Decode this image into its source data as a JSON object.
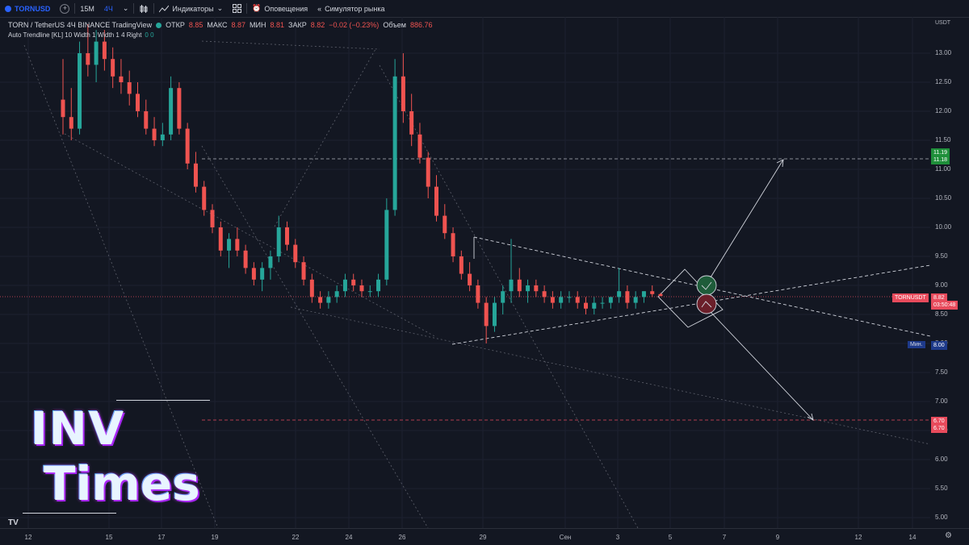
{
  "toolbar": {
    "symbol": "TORNUSD",
    "timeframe_15m": "15М",
    "timeframe_4h": "4Ч",
    "indicators": "Индикаторы",
    "alerts": "Оповещения",
    "replay": "Симулятор рынка"
  },
  "legend": {
    "title": "TORN / TetherUS  4Ч  BINANCE  TradingView",
    "open_label": "ОТКР",
    "open": "8.85",
    "high_label": "МАКС",
    "high": "8.87",
    "low_label": "МИН",
    "low": "8.81",
    "close_label": "ЗАКР",
    "close": "8.82",
    "change": "−0.02 (−0.23%)",
    "volume_label": "Объем",
    "volume": "886.76",
    "indicator": "Auto Trendline [KL]  10  Width 1  Width 1  4  Right",
    "indicator_vals": "0  0"
  },
  "price_axis": {
    "currency": "USDT",
    "ticks": [
      "13.00",
      "12.50",
      "12.00",
      "11.50",
      "11.00",
      "10.50",
      "10.00",
      "9.50",
      "9.00",
      "8.50",
      "8.00",
      "7.50",
      "7.00",
      "6.50",
      "6.00",
      "5.50",
      "5.00"
    ]
  },
  "price_tags": {
    "target_up_1": "11.19",
    "target_up_2": "11.18",
    "current_name": "TORNUSDT",
    "current_price": "8.82",
    "countdown": "03:50:48",
    "min_label": "Мин.",
    "min_price": "8.00",
    "target_down_1": "6.70",
    "target_down_2": "6.70"
  },
  "time_axis": {
    "ticks": [
      "12",
      "15",
      "17",
      "19",
      "22",
      "24",
      "26",
      "29",
      "Сен",
      "3",
      "5",
      "7",
      "9",
      "12",
      "14"
    ]
  },
  "watermark": {
    "line1": "INV",
    "line2": "Times"
  },
  "colors": {
    "background": "#131722",
    "bull": "#26a69a",
    "bear": "#ef5350",
    "accent": "#2962ff"
  },
  "chart_data": {
    "type": "candlestick",
    "symbol": "TORN / TetherUS",
    "exchange": "BINANCE",
    "interval": "4Ч",
    "ylim": [
      4.9,
      13.6
    ],
    "last_price": 8.82,
    "resistance_target": 11.18,
    "support_target": 6.7,
    "period_low": 8.0,
    "candles": [
      [
        12.2,
        12.9,
        11.6,
        11.9
      ],
      [
        11.9,
        12.4,
        11.5,
        11.7
      ],
      [
        11.7,
        13.2,
        11.6,
        13.0
      ],
      [
        13.0,
        13.5,
        12.6,
        12.8
      ],
      [
        12.8,
        13.4,
        12.5,
        13.2
      ],
      [
        13.2,
        13.4,
        12.7,
        12.9
      ],
      [
        12.9,
        13.1,
        12.4,
        12.6
      ],
      [
        12.6,
        12.9,
        12.3,
        12.5
      ],
      [
        12.5,
        12.7,
        12.1,
        12.3
      ],
      [
        12.3,
        12.5,
        11.9,
        12.0
      ],
      [
        12.0,
        12.2,
        11.6,
        11.7
      ],
      [
        11.7,
        11.9,
        11.4,
        11.5
      ],
      [
        11.5,
        11.8,
        11.4,
        11.6
      ],
      [
        11.6,
        12.6,
        11.5,
        12.4
      ],
      [
        12.4,
        12.5,
        11.6,
        11.7
      ],
      [
        11.7,
        11.8,
        11.0,
        11.1
      ],
      [
        11.1,
        11.3,
        10.6,
        10.7
      ],
      [
        10.7,
        10.8,
        10.2,
        10.3
      ],
      [
        10.3,
        10.4,
        9.9,
        10.0
      ],
      [
        10.0,
        10.1,
        9.5,
        9.6
      ],
      [
        9.6,
        9.9,
        9.3,
        9.8
      ],
      [
        9.8,
        10.0,
        9.5,
        9.6
      ],
      [
        9.6,
        9.7,
        9.2,
        9.3
      ],
      [
        9.3,
        9.4,
        9.0,
        9.1
      ],
      [
        9.1,
        9.4,
        8.9,
        9.3
      ],
      [
        9.3,
        9.6,
        9.1,
        9.5
      ],
      [
        9.5,
        10.2,
        9.4,
        10.0
      ],
      [
        10.0,
        10.1,
        9.6,
        9.7
      ],
      [
        9.7,
        9.8,
        9.3,
        9.4
      ],
      [
        9.4,
        9.5,
        9.0,
        9.1
      ],
      [
        9.1,
        9.2,
        8.7,
        8.8
      ],
      [
        8.8,
        8.9,
        8.6,
        8.7
      ],
      [
        8.7,
        8.9,
        8.6,
        8.8
      ],
      [
        8.8,
        9.0,
        8.7,
        8.9
      ],
      [
        8.9,
        9.2,
        8.8,
        9.1
      ],
      [
        9.1,
        9.2,
        8.9,
        9.0
      ],
      [
        9.0,
        9.1,
        8.8,
        8.9
      ],
      [
        8.9,
        9.0,
        8.8,
        8.9
      ],
      [
        8.9,
        9.2,
        8.8,
        9.1
      ],
      [
        9.1,
        10.5,
        9.0,
        10.3
      ],
      [
        10.3,
        12.9,
        10.2,
        12.6
      ],
      [
        12.6,
        13.0,
        11.8,
        12.0
      ],
      [
        12.0,
        12.3,
        11.4,
        11.6
      ],
      [
        11.6,
        11.8,
        11.1,
        11.2
      ],
      [
        11.2,
        11.3,
        10.5,
        10.7
      ],
      [
        10.7,
        10.9,
        10.1,
        10.2
      ],
      [
        10.2,
        10.4,
        9.8,
        9.9
      ],
      [
        9.9,
        10.0,
        9.4,
        9.5
      ],
      [
        9.5,
        9.6,
        9.1,
        9.2
      ],
      [
        9.2,
        9.4,
        8.9,
        9.0
      ],
      [
        9.0,
        9.1,
        8.6,
        8.7
      ],
      [
        8.7,
        8.8,
        8.0,
        8.3
      ],
      [
        8.3,
        8.8,
        8.2,
        8.7
      ],
      [
        8.7,
        9.0,
        8.5,
        8.9
      ],
      [
        8.9,
        9.8,
        8.7,
        9.1
      ],
      [
        9.1,
        9.3,
        8.8,
        8.9
      ],
      [
        8.9,
        9.1,
        8.7,
        9.0
      ],
      [
        9.0,
        9.1,
        8.8,
        8.9
      ],
      [
        8.9,
        9.0,
        8.7,
        8.8
      ],
      [
        8.8,
        8.9,
        8.6,
        8.7
      ],
      [
        8.7,
        8.9,
        8.6,
        8.8
      ],
      [
        8.8,
        8.9,
        8.7,
        8.8
      ],
      [
        8.8,
        8.9,
        8.6,
        8.7
      ],
      [
        8.7,
        8.8,
        8.5,
        8.6
      ],
      [
        8.6,
        8.8,
        8.5,
        8.7
      ],
      [
        8.7,
        8.8,
        8.6,
        8.7
      ],
      [
        8.7,
        8.8,
        8.6,
        8.8
      ],
      [
        8.8,
        9.3,
        8.7,
        8.9
      ],
      [
        8.9,
        9.0,
        8.6,
        8.7
      ],
      [
        8.7,
        8.9,
        8.6,
        8.8
      ],
      [
        8.8,
        8.9,
        8.7,
        8.9
      ],
      [
        8.9,
        9.0,
        8.8,
        8.85
      ],
      [
        8.85,
        8.87,
        8.81,
        8.82
      ]
    ]
  }
}
